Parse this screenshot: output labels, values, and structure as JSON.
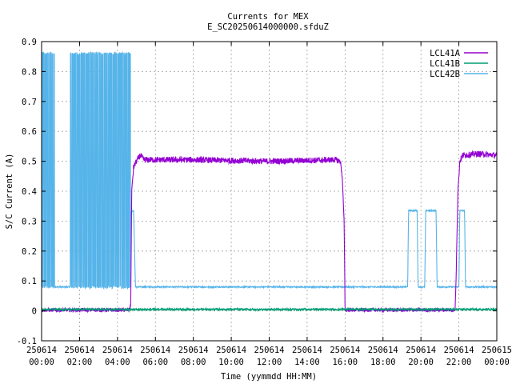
{
  "chart_data": {
    "type": "line",
    "title": "Currents for MEX",
    "subtitle": "E_SC20250614000000.sfduZ",
    "xlabel": "Time (yymmdd HH:MM)",
    "ylabel": "S/C Current (A)",
    "xlim": [
      0,
      24
    ],
    "ylim": [
      -0.1,
      0.9
    ],
    "grid": true,
    "legend_position": "top-right",
    "xticks": [
      {
        "v": 0,
        "date": "250614",
        "time": "00:00"
      },
      {
        "v": 2,
        "date": "250614",
        "time": "02:00"
      },
      {
        "v": 4,
        "date": "250614",
        "time": "04:00"
      },
      {
        "v": 6,
        "date": "250614",
        "time": "06:00"
      },
      {
        "v": 8,
        "date": "250614",
        "time": "08:00"
      },
      {
        "v": 10,
        "date": "250614",
        "time": "10:00"
      },
      {
        "v": 12,
        "date": "250614",
        "time": "12:00"
      },
      {
        "v": 14,
        "date": "250614",
        "time": "14:00"
      },
      {
        "v": 16,
        "date": "250614",
        "time": "16:00"
      },
      {
        "v": 18,
        "date": "250614",
        "time": "18:00"
      },
      {
        "v": 20,
        "date": "250614",
        "time": "20:00"
      },
      {
        "v": 22,
        "date": "250614",
        "time": "22:00"
      },
      {
        "v": 24,
        "date": "250615",
        "time": "00:00"
      }
    ],
    "yticks": [
      {
        "v": -0.1,
        "label": "-0.1"
      },
      {
        "v": 0,
        "label": "0"
      },
      {
        "v": 0.1,
        "label": "0.1"
      },
      {
        "v": 0.2,
        "label": "0.2"
      },
      {
        "v": 0.3,
        "label": "0.3"
      },
      {
        "v": 0.4,
        "label": "0.4"
      },
      {
        "v": 0.5,
        "label": "0.5"
      },
      {
        "v": 0.6,
        "label": "0.6"
      },
      {
        "v": 0.7,
        "label": "0.7"
      },
      {
        "v": 0.8,
        "label": "0.8"
      },
      {
        "v": 0.9,
        "label": "0.9"
      }
    ],
    "x_units": "hours after 250614 00:00",
    "series": [
      {
        "name": "LCL41A",
        "color": "#9400d3",
        "points": [
          [
            0,
            0.003
          ],
          [
            4.6,
            0.003
          ],
          [
            4.7,
            0.02
          ],
          [
            4.75,
            0.4
          ],
          [
            4.85,
            0.48
          ],
          [
            5.0,
            0.5
          ],
          [
            5.2,
            0.52
          ],
          [
            5.4,
            0.505
          ],
          [
            8,
            0.505
          ],
          [
            12,
            0.5
          ],
          [
            15.5,
            0.505
          ],
          [
            15.75,
            0.5
          ],
          [
            15.85,
            0.45
          ],
          [
            15.95,
            0.3
          ],
          [
            16.0,
            0.003
          ],
          [
            21.8,
            0.003
          ],
          [
            21.85,
            0.1
          ],
          [
            21.95,
            0.4
          ],
          [
            22.05,
            0.5
          ],
          [
            22.2,
            0.52
          ],
          [
            23,
            0.525
          ],
          [
            24,
            0.52
          ]
        ]
      },
      {
        "name": "LCL41B",
        "color": "#009e73",
        "points": [
          [
            0,
            0.005
          ],
          [
            24,
            0.005
          ]
        ]
      },
      {
        "name": "LCL42B",
        "color": "#56b4e9",
        "points": [
          [
            0,
            0.08
          ],
          [
            4.6,
            0.08
          ],
          [
            4.7,
            0.33
          ],
          [
            4.85,
            0.335
          ],
          [
            4.95,
            0.08
          ],
          [
            19.3,
            0.08
          ],
          [
            19.35,
            0.335
          ],
          [
            19.8,
            0.335
          ],
          [
            19.85,
            0.08
          ],
          [
            20.2,
            0.08
          ],
          [
            20.25,
            0.335
          ],
          [
            20.8,
            0.335
          ],
          [
            20.85,
            0.08
          ],
          [
            22.0,
            0.08
          ],
          [
            22.05,
            0.335
          ],
          [
            22.3,
            0.335
          ],
          [
            22.35,
            0.08
          ],
          [
            24,
            0.08
          ]
        ],
        "oscillating_ranges": [
          {
            "x": [
              0.0,
              0.7
            ],
            "low": 0.08,
            "high": 0.86
          },
          {
            "x": [
              1.5,
              4.7
            ],
            "low": 0.08,
            "high": 0.86
          }
        ]
      }
    ]
  }
}
